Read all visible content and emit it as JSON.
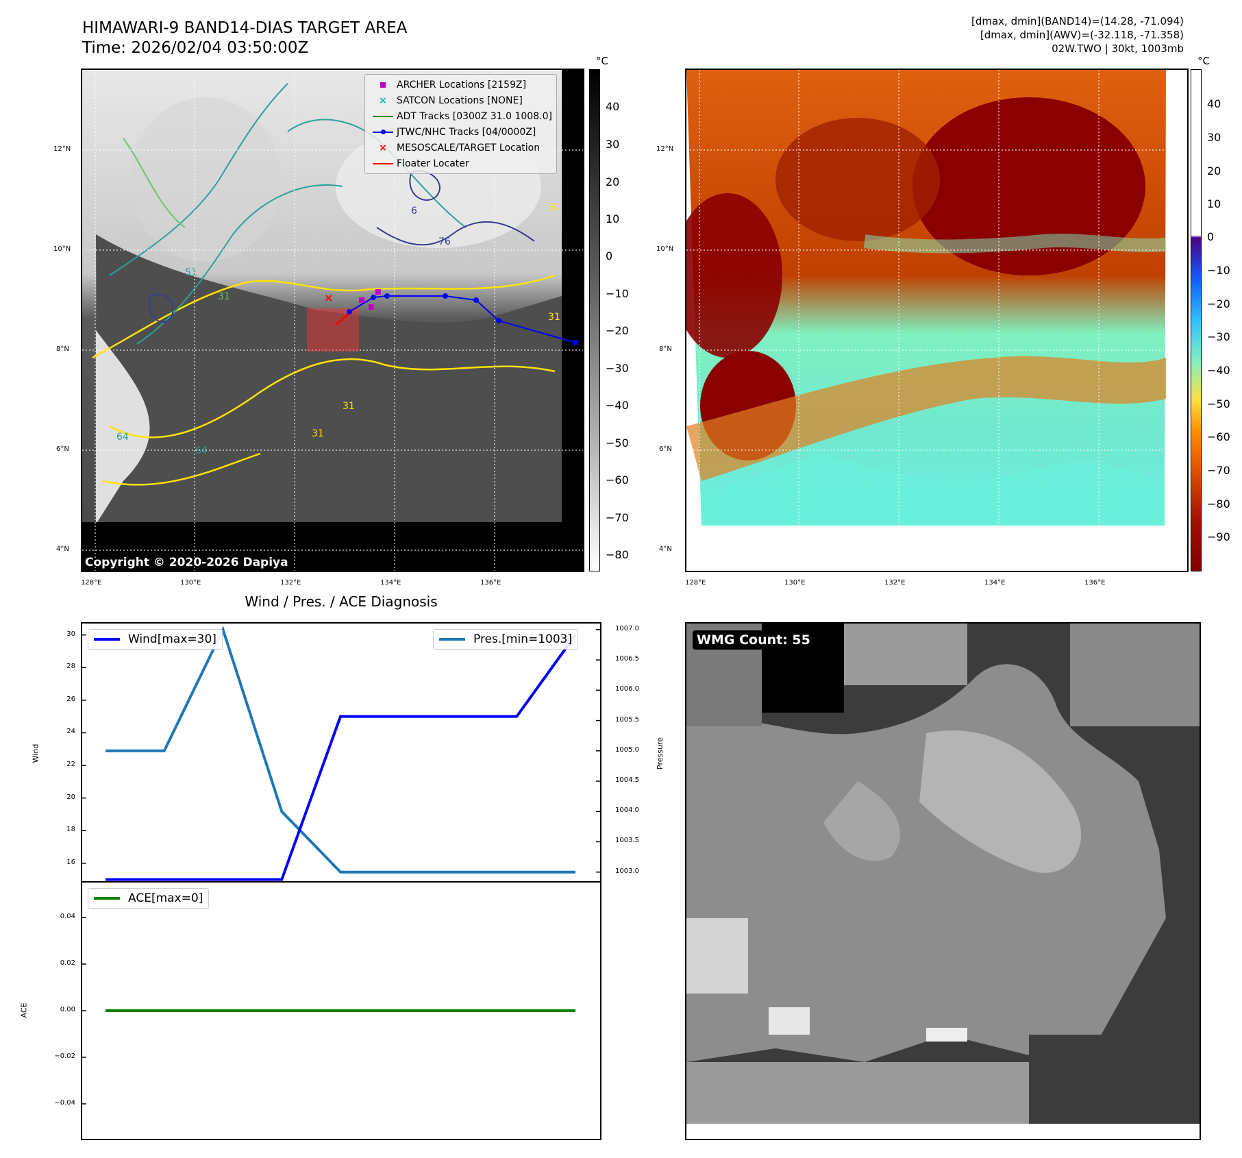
{
  "header": {
    "title_line1": "HIMAWARI-9 BAND14-DIAS TARGET AREA",
    "title_line2": "Time: 2026/02/04 03:50:00Z",
    "meta_line1": "[dmax, dmin](BAND14)=(14.28, -71.094)",
    "meta_line2": "[dmax, dmin](AWV)=(-32.118, -71.358)",
    "meta_line3": "02W.TWO | 30kt, 1003mb"
  },
  "map_panel": {
    "lon_labels": [
      "128°E",
      "130°E",
      "132°E",
      "134°E",
      "136°E"
    ],
    "lat_labels": [
      "12°N",
      "10°N",
      "8°N",
      "6°N",
      "4°N"
    ],
    "copyright": "Copyright © 2020-2026 Dapiya",
    "colorbar_unit": "°C",
    "colorbar_ticks": [
      "40",
      "30",
      "20",
      "10",
      "0",
      "−10",
      "−20",
      "−30",
      "−40",
      "−50",
      "−60",
      "−70",
      "−80"
    ],
    "contour_labels": [
      "31",
      "51",
      "64",
      "76",
      "31",
      "31",
      "31",
      "64",
      "31",
      "6"
    ],
    "legend": [
      {
        "label": "ARCHER Locations [2159Z]",
        "symbol": "square",
        "color": "#c000c0"
      },
      {
        "label": "SATCON Locations [NONE]",
        "symbol": "x",
        "color": "#00b0b0"
      },
      {
        "label": "ADT Tracks [0300Z 31.0 1008.0]",
        "symbol": "line",
        "color": "#008000"
      },
      {
        "label": "JTWC/NHC Tracks [04/0000Z]",
        "symbol": "line-dot",
        "color": "#0000ff"
      },
      {
        "label": "MESOSCALE/TARGET Location",
        "symbol": "x",
        "color": "#ff0000"
      },
      {
        "label": "Floater Locater",
        "symbol": "line",
        "color": "#ff0000"
      }
    ]
  },
  "awv_panel": {
    "lon_labels": [
      "128°E",
      "130°E",
      "132°E",
      "134°E",
      "136°E"
    ],
    "lat_labels": [
      "12°N",
      "10°N",
      "8°N",
      "6°N",
      "4°N"
    ],
    "colorbar_unit": "°C",
    "colorbar_ticks": [
      "40",
      "30",
      "20",
      "10",
      "0",
      "−10",
      "−20",
      "−30",
      "−40",
      "−50",
      "−60",
      "−70",
      "−80",
      "−90"
    ]
  },
  "diagnosis": {
    "title": "Wind / Pres. / ACE Diagnosis",
    "wind_ylabel": "Wind",
    "pressure_ylabel": "Pressure",
    "ace_ylabel": "ACE",
    "wind_ticks": [
      "30",
      "28",
      "26",
      "24",
      "22",
      "20",
      "18",
      "16"
    ],
    "pres_ticks": [
      "1007.0",
      "1006.5",
      "1006.0",
      "1005.5",
      "1005.0",
      "1004.5",
      "1004.0",
      "1003.5",
      "1003.0"
    ],
    "ace_ticks": [
      "0.04",
      "0.02",
      "0.00",
      "−0.02",
      "−0.04"
    ],
    "wind_legend": "Wind[max=30]",
    "pres_legend": "Pres.[min=1003]",
    "ace_legend": "ACE[max=0]",
    "wind_color": "#0000ff",
    "pres_color": "#1f77b4",
    "ace_color": "#008000"
  },
  "wmg_panel": {
    "count_label": "WMG Count: 55"
  },
  "chart_data": [
    {
      "type": "line",
      "title": "Wind / Pres. / ACE Diagnosis",
      "ylabel": "Wind",
      "ylim": [
        14.9,
        30.7
      ],
      "x": [
        0,
        1,
        2,
        3,
        4,
        5,
        6,
        7,
        8
      ],
      "series": [
        {
          "name": "Wind[max=30]",
          "values": [
            15,
            15,
            15,
            15,
            25,
            25,
            25,
            25,
            30
          ]
        }
      ]
    },
    {
      "type": "line",
      "ylabel": "Pressure",
      "ylim": [
        1002.85,
        1007.1
      ],
      "x": [
        0,
        1,
        2,
        3,
        4,
        5,
        6,
        7,
        8
      ],
      "series": [
        {
          "name": "Pres.[min=1003]",
          "values": [
            1005,
            1005,
            1007,
            1004,
            1003,
            1003,
            1003,
            1003,
            1003
          ]
        }
      ]
    },
    {
      "type": "line",
      "ylabel": "ACE",
      "ylim": [
        -0.055,
        0.055
      ],
      "x": [
        0,
        1,
        2,
        3,
        4,
        5,
        6,
        7,
        8
      ],
      "series": [
        {
          "name": "ACE[max=0]",
          "values": [
            0,
            0,
            0,
            0,
            0,
            0,
            0,
            0,
            0
          ]
        }
      ]
    }
  ]
}
